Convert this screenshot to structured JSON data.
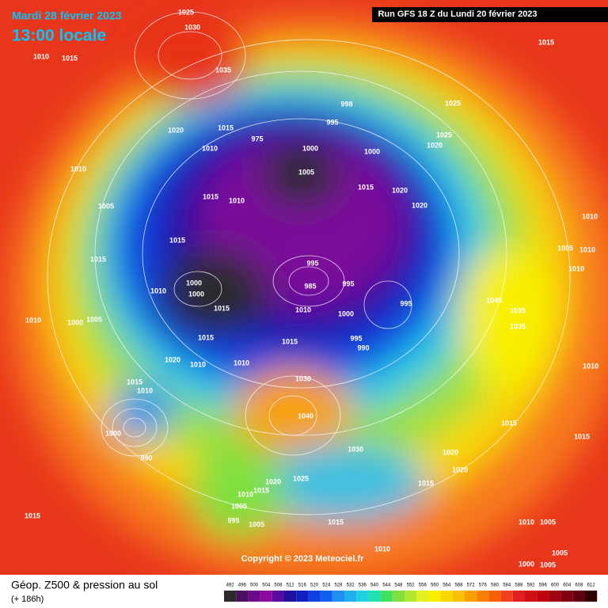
{
  "header": {
    "date": "Mardi 28 février 2023",
    "time": "13:00 locale",
    "run": "Run GFS 18 Z du Lundi 20 février 2023"
  },
  "map": {
    "pressure_labels": [
      1025,
      1030,
      1010,
      1015,
      1035,
      1015,
      998,
      995,
      1025,
      1020,
      1015,
      1010,
      975,
      1000,
      1000,
      1025,
      1020,
      1010,
      1005,
      1015,
      1020,
      1015,
      1010,
      1005,
      1020,
      1010,
      1015,
      1005,
      1015,
      1010,
      995,
      1010,
      1000,
      985,
      995,
      1010,
      1000,
      995,
      1045,
      1010,
      1000,
      1005,
      1015,
      1010,
      1000,
      1035,
      1035,
      1015,
      1015,
      995,
      990,
      1020,
      1010,
      1010,
      1010,
      1030,
      1015,
      1010,
      1040,
      1015,
      1000,
      990,
      1030,
      1015,
      1020,
      1020,
      1025,
      1020,
      1015,
      1015,
      1010,
      1005,
      995,
      1005,
      1015,
      1015,
      1010,
      1005,
      1010,
      1005,
      1000,
      1005
    ]
  },
  "footer": {
    "title": "Géop. Z500 & pression au sol",
    "lead": "(+ 186h)",
    "copyright": "Copyright © 2023 Meteociel.fr"
  },
  "legend": {
    "values": [
      492,
      496,
      500,
      504,
      508,
      512,
      516,
      520,
      524,
      528,
      532,
      536,
      540,
      544,
      548,
      552,
      556,
      560,
      564,
      568,
      572,
      576,
      580,
      584,
      588,
      592,
      596,
      600,
      604,
      608,
      612
    ],
    "colors": [
      "#2b2b2b",
      "#4a1060",
      "#6a0a8a",
      "#8a0aa0",
      "#5a0aa0",
      "#2010a0",
      "#1020c0",
      "#1040e0",
      "#1060f0",
      "#2090f0",
      "#20b0f0",
      "#20d0e0",
      "#20e0b0",
      "#40e060",
      "#80e040",
      "#b0e830",
      "#e0f020",
      "#f8f000",
      "#f8d800",
      "#f8c000",
      "#f8a000",
      "#f88000",
      "#f86000",
      "#f04020",
      "#e02020",
      "#d01010",
      "#c00010",
      "#a00010",
      "#800010",
      "#600010",
      "#300000"
    ]
  }
}
